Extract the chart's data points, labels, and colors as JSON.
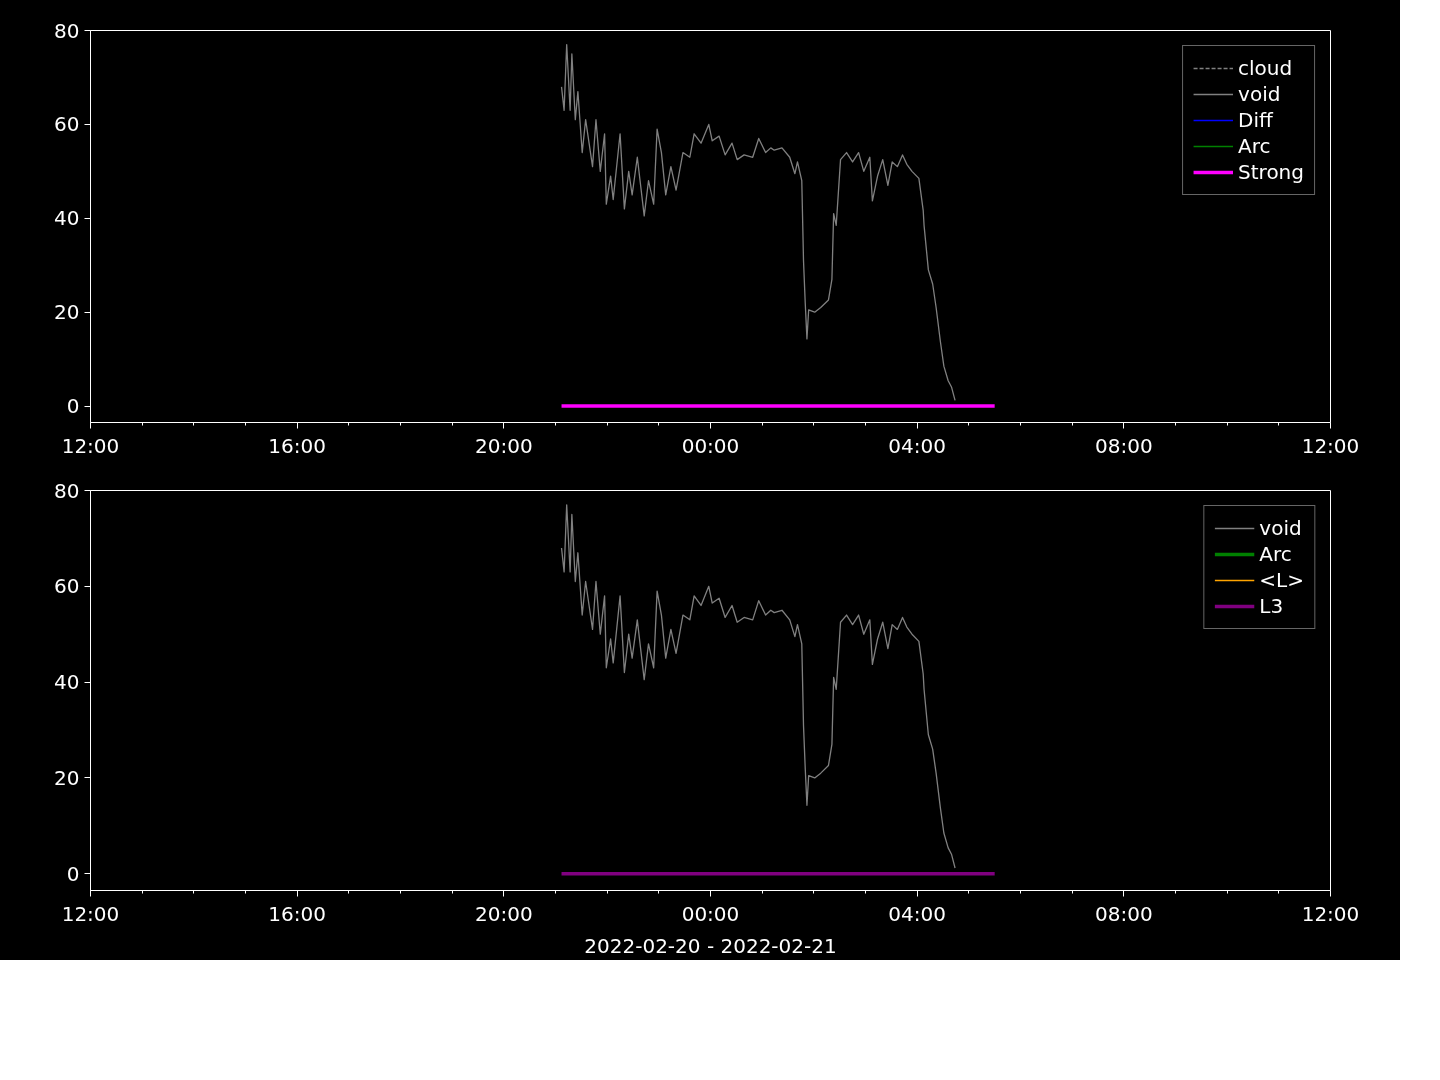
{
  "chart_data": [
    {
      "type": "line",
      "xlim": [
        "2022-02-20T12:00",
        "2022-02-21T12:00"
      ],
      "ylim": [
        -3.5,
        80
      ],
      "yticks": [
        0,
        20,
        40,
        60,
        80
      ],
      "xticks": [
        {
          "value": "2022-02-20T12:00",
          "label": "12:00"
        },
        {
          "value": "2022-02-20T13:00",
          "label": null
        },
        {
          "value": "2022-02-20T14:00",
          "label": null
        },
        {
          "value": "2022-02-20T15:00",
          "label": null
        },
        {
          "value": "2022-02-20T16:00",
          "label": "16:00"
        },
        {
          "value": "2022-02-20T17:00",
          "label": null
        },
        {
          "value": "2022-02-20T18:00",
          "label": null
        },
        {
          "value": "2022-02-20T19:00",
          "label": null
        },
        {
          "value": "2022-02-20T20:00",
          "label": "20:00"
        },
        {
          "value": "2022-02-20T21:00",
          "label": null
        },
        {
          "value": "2022-02-20T22:00",
          "label": null
        },
        {
          "value": "2022-02-20T23:00",
          "label": null
        },
        {
          "value": "2022-02-21T00:00",
          "label": "00:00"
        },
        {
          "value": "2022-02-21T01:00",
          "label": null
        },
        {
          "value": "2022-02-21T02:00",
          "label": null
        },
        {
          "value": "2022-02-21T03:00",
          "label": null
        },
        {
          "value": "2022-02-21T04:00",
          "label": "04:00"
        },
        {
          "value": "2022-02-21T05:00",
          "label": null
        },
        {
          "value": "2022-02-21T06:00",
          "label": null
        },
        {
          "value": "2022-02-21T07:00",
          "label": null
        },
        {
          "value": "2022-02-21T08:00",
          "label": "08:00"
        },
        {
          "value": "2022-02-21T09:00",
          "label": null
        },
        {
          "value": "2022-02-21T10:00",
          "label": null
        },
        {
          "value": "2022-02-21T11:00",
          "label": null
        },
        {
          "value": "2022-02-21T12:00",
          "label": "12:00"
        }
      ],
      "grid": false,
      "legend": "top right",
      "series": [
        {
          "name": "cloud",
          "color": "#808080",
          "line_style": "dashed"
        },
        {
          "name": "void",
          "color": "#808080",
          "x": [
            "2022-02-20T21:07",
            "2022-02-20T21:10",
            "2022-02-20T21:13",
            "2022-02-20T21:17",
            "2022-02-20T21:19",
            "2022-02-20T21:23",
            "2022-02-20T21:26",
            "2022-02-20T21:31",
            "2022-02-20T21:35",
            "2022-02-20T21:39",
            "2022-02-20T21:43",
            "2022-02-20T21:47",
            "2022-02-20T21:52",
            "2022-02-20T21:57",
            "2022-02-20T21:59",
            "2022-02-20T22:04",
            "2022-02-20T22:07",
            "2022-02-20T22:15",
            "2022-02-20T22:20",
            "2022-02-20T22:25",
            "2022-02-20T22:29",
            "2022-02-20T22:35",
            "2022-02-20T22:43",
            "2022-02-20T22:48",
            "2022-02-20T22:54",
            "2022-02-20T22:58",
            "2022-02-20T23:03",
            "2022-02-20T23:08",
            "2022-02-20T23:14",
            "2022-02-20T23:20",
            "2022-02-20T23:28",
            "2022-02-20T23:36",
            "2022-02-20T23:41",
            "2022-02-20T23:49",
            "2022-02-20T23:58",
            "2022-02-21T00:02",
            "2022-02-21T00:10",
            "2022-02-21T00:17",
            "2022-02-21T00:25",
            "2022-02-21T00:31",
            "2022-02-21T00:39",
            "2022-02-21T00:49",
            "2022-02-21T00:56",
            "2022-02-21T01:04",
            "2022-02-21T01:10",
            "2022-02-21T01:14",
            "2022-02-21T01:23",
            "2022-02-21T01:32",
            "2022-02-21T01:38",
            "2022-02-21T01:41",
            "2022-02-21T01:46",
            "2022-02-21T01:48",
            "2022-02-21T01:50",
            "2022-02-21T01:52",
            "2022-02-21T01:54",
            "2022-02-21T02:01",
            "2022-02-21T02:08",
            "2022-02-21T02:17",
            "2022-02-21T02:21",
            "2022-02-21T02:23",
            "2022-02-21T02:26",
            "2022-02-21T02:31",
            "2022-02-21T02:38",
            "2022-02-21T02:45",
            "2022-02-21T02:52",
            "2022-02-21T02:58",
            "2022-02-21T03:05",
            "2022-02-21T03:08",
            "2022-02-21T03:14",
            "2022-02-21T03:20",
            "2022-02-21T03:26",
            "2022-02-21T03:31",
            "2022-02-21T03:37",
            "2022-02-21T03:43",
            "2022-02-21T03:48",
            "2022-02-21T03:54",
            "2022-02-21T04:02",
            "2022-02-21T04:07",
            "2022-02-21T04:08",
            "2022-02-21T04:13",
            "2022-02-21T04:18",
            "2022-02-21T04:22",
            "2022-02-21T04:27",
            "2022-02-21T04:31",
            "2022-02-21T04:36",
            "2022-02-21T04:40",
            "2022-02-21T04:44"
          ],
          "values": [
            68,
            63,
            77,
            63,
            75,
            61,
            67,
            54,
            61,
            56,
            51,
            61,
            50,
            58,
            43,
            49,
            44,
            58,
            42,
            50,
            45,
            53,
            40.5,
            48,
            43,
            59,
            54,
            45,
            51,
            46,
            54,
            53,
            58,
            56,
            60,
            56.5,
            57.5,
            53.5,
            56,
            52.5,
            53.5,
            53,
            57,
            54,
            55,
            54.5,
            55,
            53,
            49.5,
            52,
            48,
            31,
            22,
            14.3,
            20.5,
            20,
            21,
            22.6,
            27,
            41,
            38.5,
            52.5,
            54,
            52,
            54,
            50,
            53,
            43.7,
            49,
            52.5,
            47,
            52,
            51,
            53.5,
            51.5,
            50,
            48.5,
            41.7,
            38.5,
            29,
            26,
            21,
            13.7,
            8.5,
            5.4,
            4,
            1.2
          ]
        },
        {
          "name": "Diff",
          "color": "#0000ff"
        },
        {
          "name": "Arc",
          "color": "#008000"
        },
        {
          "name": "Strong",
          "color": "#ff00ff",
          "x": [
            "2022-02-20T21:07",
            "2022-02-21T05:30"
          ],
          "values": [
            0,
            0
          ]
        }
      ]
    },
    {
      "type": "line",
      "xlim": [
        "2022-02-20T12:00",
        "2022-02-21T12:00"
      ],
      "ylim": [
        -3.5,
        80
      ],
      "yticks": [
        0,
        20,
        40,
        60,
        80
      ],
      "xlabel": "2022-02-20 - 2022-02-21",
      "xticks": [
        {
          "value": "2022-02-20T12:00",
          "label": "12:00"
        },
        {
          "value": "2022-02-20T13:00",
          "label": null
        },
        {
          "value": "2022-02-20T14:00",
          "label": null
        },
        {
          "value": "2022-02-20T15:00",
          "label": null
        },
        {
          "value": "2022-02-20T16:00",
          "label": "16:00"
        },
        {
          "value": "2022-02-20T17:00",
          "label": null
        },
        {
          "value": "2022-02-20T18:00",
          "label": null
        },
        {
          "value": "2022-02-20T19:00",
          "label": null
        },
        {
          "value": "2022-02-20T20:00",
          "label": "20:00"
        },
        {
          "value": "2022-02-20T21:00",
          "label": null
        },
        {
          "value": "2022-02-20T22:00",
          "label": null
        },
        {
          "value": "2022-02-20T23:00",
          "label": null
        },
        {
          "value": "2022-02-21T00:00",
          "label": "00:00"
        },
        {
          "value": "2022-02-21T01:00",
          "label": null
        },
        {
          "value": "2022-02-21T02:00",
          "label": null
        },
        {
          "value": "2022-02-21T03:00",
          "label": null
        },
        {
          "value": "2022-02-21T04:00",
          "label": "04:00"
        },
        {
          "value": "2022-02-21T05:00",
          "label": null
        },
        {
          "value": "2022-02-21T06:00",
          "label": null
        },
        {
          "value": "2022-02-21T07:00",
          "label": null
        },
        {
          "value": "2022-02-21T08:00",
          "label": "08:00"
        },
        {
          "value": "2022-02-21T09:00",
          "label": null
        },
        {
          "value": "2022-02-21T10:00",
          "label": null
        },
        {
          "value": "2022-02-21T11:00",
          "label": null
        },
        {
          "value": "2022-02-21T12:00",
          "label": "12:00"
        }
      ],
      "grid": false,
      "legend": "top right",
      "series": [
        {
          "name": "void",
          "color": "#808080",
          "x": [
            "2022-02-20T21:07",
            "2022-02-20T21:10",
            "2022-02-20T21:13",
            "2022-02-20T21:17",
            "2022-02-20T21:19",
            "2022-02-20T21:23",
            "2022-02-20T21:26",
            "2022-02-20T21:31",
            "2022-02-20T21:35",
            "2022-02-20T21:39",
            "2022-02-20T21:43",
            "2022-02-20T21:47",
            "2022-02-20T21:52",
            "2022-02-20T21:57",
            "2022-02-20T21:59",
            "2022-02-20T22:04",
            "2022-02-20T22:07",
            "2022-02-20T22:15",
            "2022-02-20T22:20",
            "2022-02-20T22:25",
            "2022-02-20T22:29",
            "2022-02-20T22:35",
            "2022-02-20T22:43",
            "2022-02-20T22:48",
            "2022-02-20T22:54",
            "2022-02-20T22:58",
            "2022-02-20T23:03",
            "2022-02-20T23:08",
            "2022-02-20T23:14",
            "2022-02-20T23:20",
            "2022-02-20T23:28",
            "2022-02-20T23:36",
            "2022-02-20T23:41",
            "2022-02-20T23:49",
            "2022-02-20T23:58",
            "2022-02-21T00:02",
            "2022-02-21T00:10",
            "2022-02-21T00:17",
            "2022-02-21T00:25",
            "2022-02-21T00:31",
            "2022-02-21T00:39",
            "2022-02-21T00:49",
            "2022-02-21T00:56",
            "2022-02-21T01:04",
            "2022-02-21T01:10",
            "2022-02-21T01:14",
            "2022-02-21T01:23",
            "2022-02-21T01:32",
            "2022-02-21T01:38",
            "2022-02-21T01:41",
            "2022-02-21T01:46",
            "2022-02-21T01:48",
            "2022-02-21T01:50",
            "2022-02-21T01:52",
            "2022-02-21T01:54",
            "2022-02-21T02:01",
            "2022-02-21T02:08",
            "2022-02-21T02:17",
            "2022-02-21T02:21",
            "2022-02-21T02:23",
            "2022-02-21T02:26",
            "2022-02-21T02:31",
            "2022-02-21T02:38",
            "2022-02-21T02:45",
            "2022-02-21T02:52",
            "2022-02-21T02:58",
            "2022-02-21T03:05",
            "2022-02-21T03:08",
            "2022-02-21T03:14",
            "2022-02-21T03:20",
            "2022-02-21T03:26",
            "2022-02-21T03:31",
            "2022-02-21T03:37",
            "2022-02-21T03:43",
            "2022-02-21T03:48",
            "2022-02-21T03:54",
            "2022-02-21T04:02",
            "2022-02-21T04:07",
            "2022-02-21T04:08",
            "2022-02-21T04:13",
            "2022-02-21T04:18",
            "2022-02-21T04:22",
            "2022-02-21T04:27",
            "2022-02-21T04:31",
            "2022-02-21T04:36",
            "2022-02-21T04:40",
            "2022-02-21T04:44"
          ],
          "values": [
            68,
            63,
            77,
            63,
            75,
            61,
            67,
            54,
            61,
            56,
            51,
            61,
            50,
            58,
            43,
            49,
            44,
            58,
            42,
            50,
            45,
            53,
            40.5,
            48,
            43,
            59,
            54,
            45,
            51,
            46,
            54,
            53,
            58,
            56,
            60,
            56.5,
            57.5,
            53.5,
            56,
            52.5,
            53.5,
            53,
            57,
            54,
            55,
            54.5,
            55,
            53,
            49.5,
            52,
            48,
            31,
            22,
            14.3,
            20.5,
            20,
            21,
            22.6,
            27,
            41,
            38.5,
            52.5,
            54,
            52,
            54,
            50,
            53,
            43.7,
            49,
            52.5,
            47,
            52,
            51,
            53.5,
            51.5,
            50,
            48.5,
            41.7,
            38.5,
            29,
            26,
            21,
            13.7,
            8.5,
            5.4,
            4,
            1.2
          ]
        },
        {
          "name": "Arc",
          "color": "#008000"
        },
        {
          "name": "<L>",
          "color": "#ffa500"
        },
        {
          "name": "L3",
          "color": "#800080",
          "x": [
            "2022-02-20T21:07",
            "2022-02-21T05:30"
          ],
          "values": [
            0,
            0
          ]
        }
      ]
    }
  ]
}
